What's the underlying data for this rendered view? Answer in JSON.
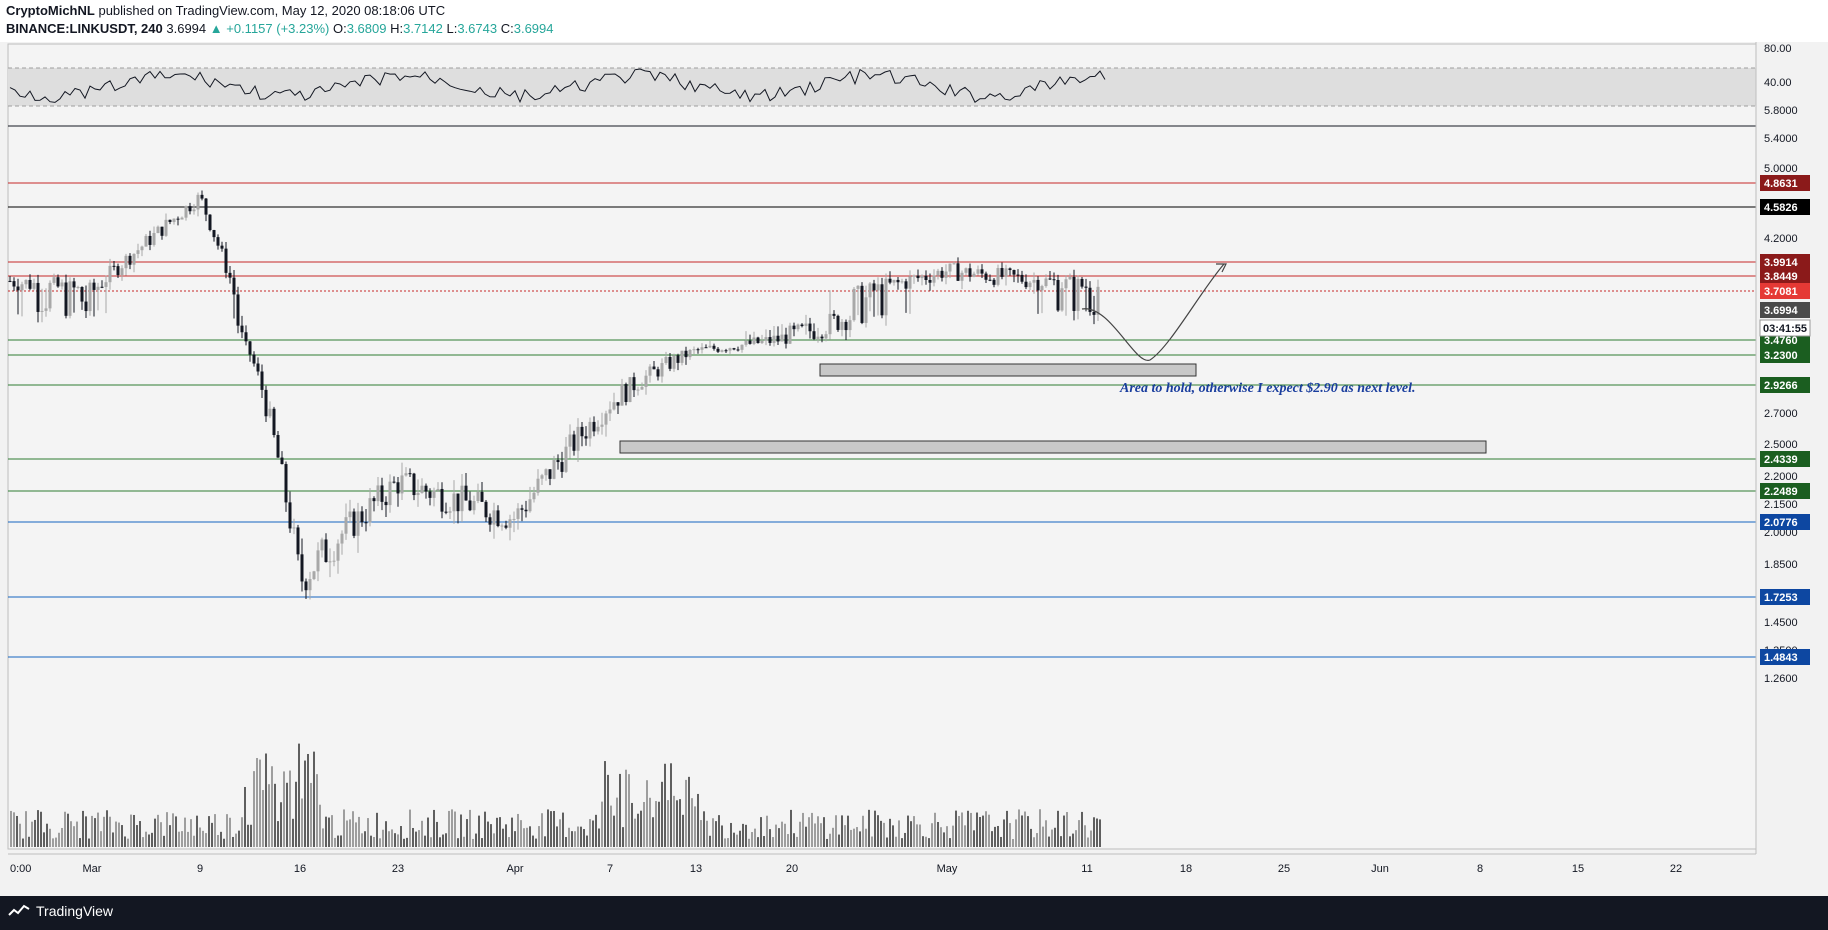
{
  "header": {
    "author": "CryptoMichNL",
    "published": "published on TradingView.com, May 12, 2020 08:18:06 UTC",
    "symbol": "BINANCE:LINKUSDT, 240",
    "last": "3.6994",
    "change": "▲ +0.1157 (+3.23%)",
    "o_label": "O:",
    "o_value": "3.6809",
    "h_label": "H:",
    "h_value": "3.7142",
    "l_label": "L:",
    "l_value": "3.6743",
    "c_label": "C:",
    "c_value": "3.6994"
  },
  "footer": {
    "brand": "TradingView"
  },
  "colors": {
    "red": "#c62828",
    "black": "#000000",
    "green": "#2e7d32",
    "blue": "#1565c0",
    "candle_up": "#a8a8a8",
    "candle_down": "#131722",
    "bg": "#f2f2f2"
  },
  "chart_data": {
    "type": "candlestick",
    "symbol": "BINANCE:LINKUSDT",
    "interval": "240",
    "price_axis_ticks": [
      "5.8000",
      "5.4000",
      "5.0000",
      "4.2000",
      "2.7000",
      "2.5000",
      "2.2000",
      "2.1500",
      "2.0000",
      "1.8500",
      "1.5500",
      "1.4500",
      "1.3500",
      "1.2600"
    ],
    "time_axis_ticks": [
      "0:00",
      "Mar",
      "9",
      "16",
      "23",
      "Apr",
      "7",
      "13",
      "20",
      "May",
      "11",
      "18",
      "25",
      "Jun",
      "8",
      "15",
      "22"
    ],
    "rsi_ticks": [
      "80.00",
      "40.00"
    ],
    "horizontal_levels": [
      {
        "value": 4.8631,
        "label": "4.8631",
        "color": "red"
      },
      {
        "value": 4.5826,
        "label": "4.5826",
        "color": "black"
      },
      {
        "value": 3.9914,
        "label": "3.9914",
        "color": "red"
      },
      {
        "value": 3.8449,
        "label": "3.8449",
        "color": "red"
      },
      {
        "value": 3.7081,
        "label": "3.7081",
        "color": "red",
        "style": "dotted"
      },
      {
        "value": 3.476,
        "label": "3.4760",
        "color": "green"
      },
      {
        "value": 3.23,
        "label": "3.2300",
        "color": "green"
      },
      {
        "value": 2.9266,
        "label": "2.9266",
        "color": "green"
      },
      {
        "value": 2.4339,
        "label": "2.4339",
        "color": "green"
      },
      {
        "value": 2.2489,
        "label": "2.2489",
        "color": "green"
      },
      {
        "value": 2.0776,
        "label": "2.0776",
        "color": "blue"
      },
      {
        "value": 1.7253,
        "label": "1.7253",
        "color": "blue"
      },
      {
        "value": 1.4843,
        "label": "1.4843",
        "color": "blue"
      }
    ],
    "last_price_label": "3.6994",
    "countdown_label": "03:41:55",
    "annotation": "Area to hold, otherwise I expect $2.90 as next level.",
    "price_path": [
      [
        "0:00",
        3.8
      ],
      [
        "Mar",
        3.7
      ],
      [
        "9",
        4.7
      ],
      [
        "16",
        1.8
      ],
      [
        "23",
        2.3
      ],
      [
        "Apr",
        2.1
      ],
      [
        "7",
        2.8
      ],
      [
        "13",
        3.3
      ],
      [
        "20",
        3.5
      ],
      [
        "May",
        3.9
      ],
      [
        "11",
        3.75
      ]
    ]
  }
}
